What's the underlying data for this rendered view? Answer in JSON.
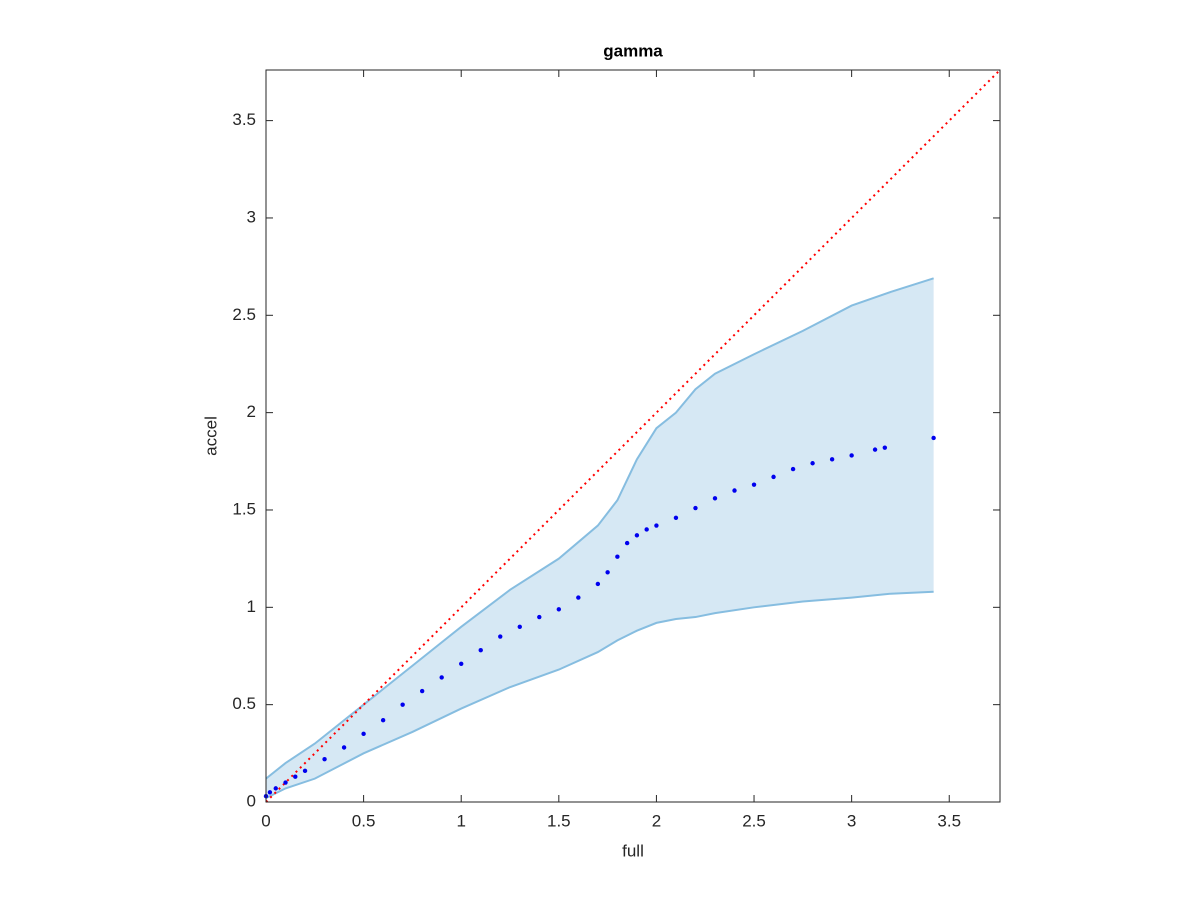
{
  "chart_data": {
    "type": "scatter",
    "title": "gamma",
    "xlabel": "full",
    "ylabel": "accel",
    "xlim": [
      0,
      3.76
    ],
    "ylim": [
      0,
      3.76
    ],
    "xticks": [
      0,
      0.5,
      1,
      1.5,
      2,
      2.5,
      3,
      3.5
    ],
    "yticks": [
      0,
      0.5,
      1,
      1.5,
      2,
      2.5,
      3,
      3.5
    ],
    "x": [
      0,
      0.02,
      0.05,
      0.1,
      0.15,
      0.2,
      0.3,
      0.4,
      0.5,
      0.6,
      0.7,
      0.8,
      0.9,
      1.0,
      1.1,
      1.2,
      1.3,
      1.4,
      1.5,
      1.6,
      1.7,
      1.75,
      1.8,
      1.85,
      1.9,
      1.95,
      2.0,
      2.1,
      2.2,
      2.3,
      2.4,
      2.5,
      2.6,
      2.7,
      2.8,
      2.9,
      3.0,
      3.12,
      3.17,
      3.42
    ],
    "values": [
      0.03,
      0.05,
      0.07,
      0.1,
      0.13,
      0.16,
      0.22,
      0.28,
      0.35,
      0.42,
      0.5,
      0.57,
      0.64,
      0.71,
      0.78,
      0.85,
      0.9,
      0.95,
      0.99,
      1.05,
      1.12,
      1.18,
      1.26,
      1.33,
      1.37,
      1.4,
      1.42,
      1.46,
      1.51,
      1.56,
      1.6,
      1.63,
      1.67,
      1.71,
      1.74,
      1.76,
      1.78,
      1.81,
      1.82,
      1.87
    ],
    "color": "#0000ee",
    "band": {
      "x": [
        0,
        0.1,
        0.25,
        0.5,
        0.75,
        1,
        1.25,
        1.5,
        1.7,
        1.8,
        1.9,
        2,
        2.1,
        2.2,
        2.3,
        2.5,
        2.75,
        3,
        3.2,
        3.42
      ],
      "upper": [
        0.12,
        0.2,
        0.3,
        0.5,
        0.7,
        0.9,
        1.09,
        1.25,
        1.42,
        1.55,
        1.76,
        1.92,
        2.0,
        2.12,
        2.2,
        2.3,
        2.42,
        2.55,
        2.62,
        2.69
      ],
      "lower": [
        0.02,
        0.07,
        0.12,
        0.25,
        0.36,
        0.48,
        0.59,
        0.68,
        0.77,
        0.83,
        0.88,
        0.92,
        0.94,
        0.95,
        0.97,
        1.0,
        1.03,
        1.05,
        1.07,
        1.08
      ],
      "color": "#86bde0",
      "fill": "#d6e8f4"
    },
    "reference_line": {
      "x": [
        0,
        3.76
      ],
      "y": [
        0,
        3.76
      ],
      "color": "#ff0000"
    }
  }
}
